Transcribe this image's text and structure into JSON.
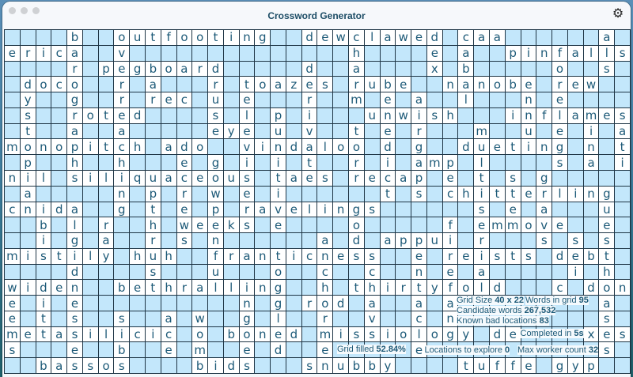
{
  "window": {
    "title": "Crossword Generator",
    "settings_icon": "gear-icon"
  },
  "colors": {
    "filled_cell": "#ffffff",
    "empty_cell": "#c3e7fb",
    "letter": "#1d5a78",
    "grid_line": "#1e3545"
  },
  "grid": {
    "size": "40 x 22",
    "rows": [
      "....b..outfooting..dewclawed.caa......a.",
      "erica..v..............h....e.a..pinfalls",
      "....r.pegboard.....d..a....x.b.....o..s.",
      ".doco..r.a...r.toazes.rube..nanobe.rew..",
      ".y..g..r.rec.u.e...r..m.e.a..l...n.e....",
      ".s..roted....s.l.p.i...unwish...inflames",
      ".t..a..a.....eye.u.v..t.e.r...m..u.e.i.a",
      "monopitch.ado..vindaloo.d.g..dueting.n.t",
      ".p..h..h...e.g.i.i.t..r.i.amp.l....s.a.i",
      "nil.siliquaceous.taes.recap.e.t.s.g.....",
      ".a.....n.p.r.w.e.i......t.s.chitterling.",
      "cnida..g.t.e.p.ravelings......s.e.a...u.",
      "..b.l.r..h.weeks.e....o.....f.emmove..e.",
      "..i.g.a..r.s.n......a.d.appui.r...s.s.s.",
      "mistily.huh..franticness..e.reists.debt.",
      "....d....s...u...o..c..c..n.e.a.....i.h.",
      "widen..bethralling..h.thirtyfold...c.don",
      "e.i.e..........n.g.rod.a..a.a.........a.",
      "e.t.s..s..a.w..g.l..r..v..c.n.........s.",
      "metasilicic.o.boned.missiology.de....xes",
      "s...e..b..e.m..e.d..e.....e...........s.",
      "..bassos....bids...snubby....tuffe.gyp.."
    ]
  },
  "stats": [
    {
      "label": "Grid Size",
      "value": "40 x 22"
    },
    {
      "label": "Words in grid",
      "value": "95"
    },
    {
      "label": "Candidate words",
      "value": "267,532"
    },
    {
      "label": "Locations to explore",
      "value": "0"
    },
    {
      "label": "Known bad locations",
      "value": "83"
    },
    {
      "label": "Grid filled",
      "value": "52.84%"
    },
    {
      "label": "Max worker count",
      "value": "32"
    },
    {
      "label": "Completed in",
      "value": "5s"
    }
  ]
}
